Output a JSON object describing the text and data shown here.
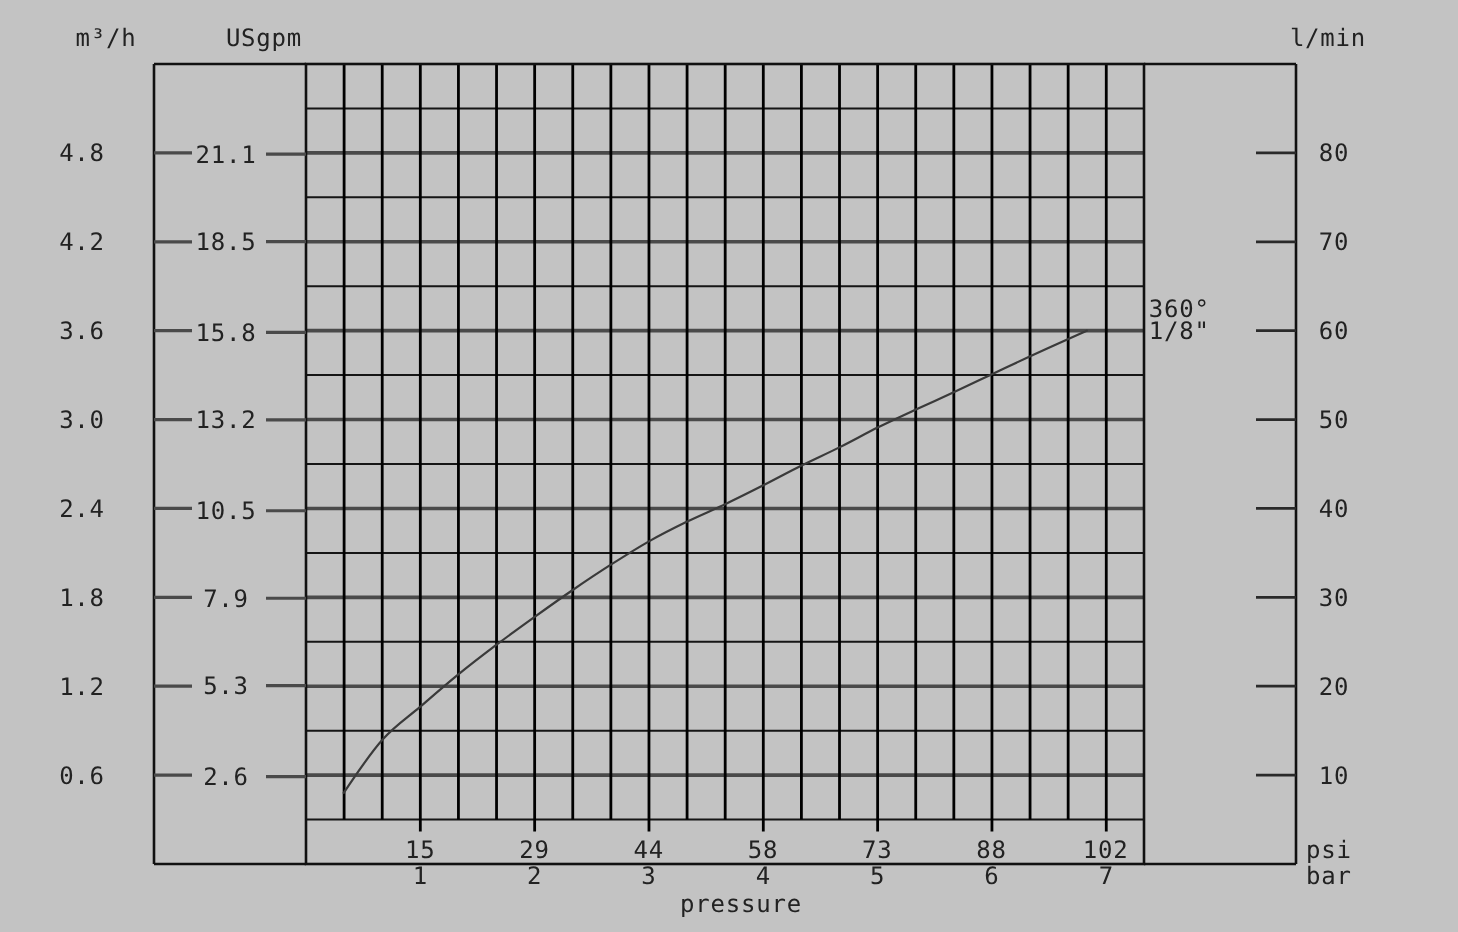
{
  "chart_data": {
    "type": "line",
    "xlabel": "pressure",
    "ylabel": "m³/h",
    "y2label": "l/min",
    "y3label": "USgpm",
    "xlim": [
      0,
      7.33
    ],
    "xticks": [
      1,
      2,
      3,
      4,
      5,
      6,
      7
    ],
    "x2lim": [
      0,
      107.1
    ],
    "x2ticks": [
      {
        "value": 14.6,
        "label": "15"
      },
      {
        "value": 29.2,
        "label": "29"
      },
      {
        "value": 43.8,
        "label": "44"
      },
      {
        "value": 58.4,
        "label": "58"
      },
      73,
      {
        "value": 87.6,
        "label": "88"
      },
      {
        "value": 102.2,
        "label": "102"
      }
    ],
    "ylim": [
      0,
      5.4
    ],
    "yticks": [
      0.6,
      1.2,
      1.8,
      2.4,
      {
        "value": 3,
        "label": "3.0"
      },
      3.6,
      4.2,
      4.8
    ],
    "y2lim": [
      0,
      90
    ],
    "y2ticks": [
      10,
      20,
      30,
      40,
      50,
      60,
      70,
      80
    ],
    "y3lim": [
      0,
      23.78
    ],
    "y3ticks": [
      2.6,
      5.3,
      7.9,
      10.5,
      13.2,
      15.8,
      18.5,
      21.1
    ],
    "grid": true,
    "series": [
      {
        "name": "360° 1/8\"",
        "color": "#3a3a3a",
        "axis": "y2",
        "x": [
          0.33,
          0.67,
          1,
          1.33,
          1.67,
          2,
          2.33,
          2.67,
          3,
          3.33,
          3.67,
          4,
          4.33,
          4.67,
          5,
          5.33,
          5.67,
          6,
          6.33,
          6.83
        ],
        "values": [
          8,
          14,
          17.7,
          21.3,
          24.7,
          27.8,
          30.8,
          33.7,
          36.3,
          38.5,
          40.5,
          42.6,
          44.8,
          46.9,
          49.1,
          51.1,
          53.1,
          55.1,
          57.1,
          60
        ]
      }
    ],
    "annotations": [
      "psi",
      "bar"
    ]
  }
}
